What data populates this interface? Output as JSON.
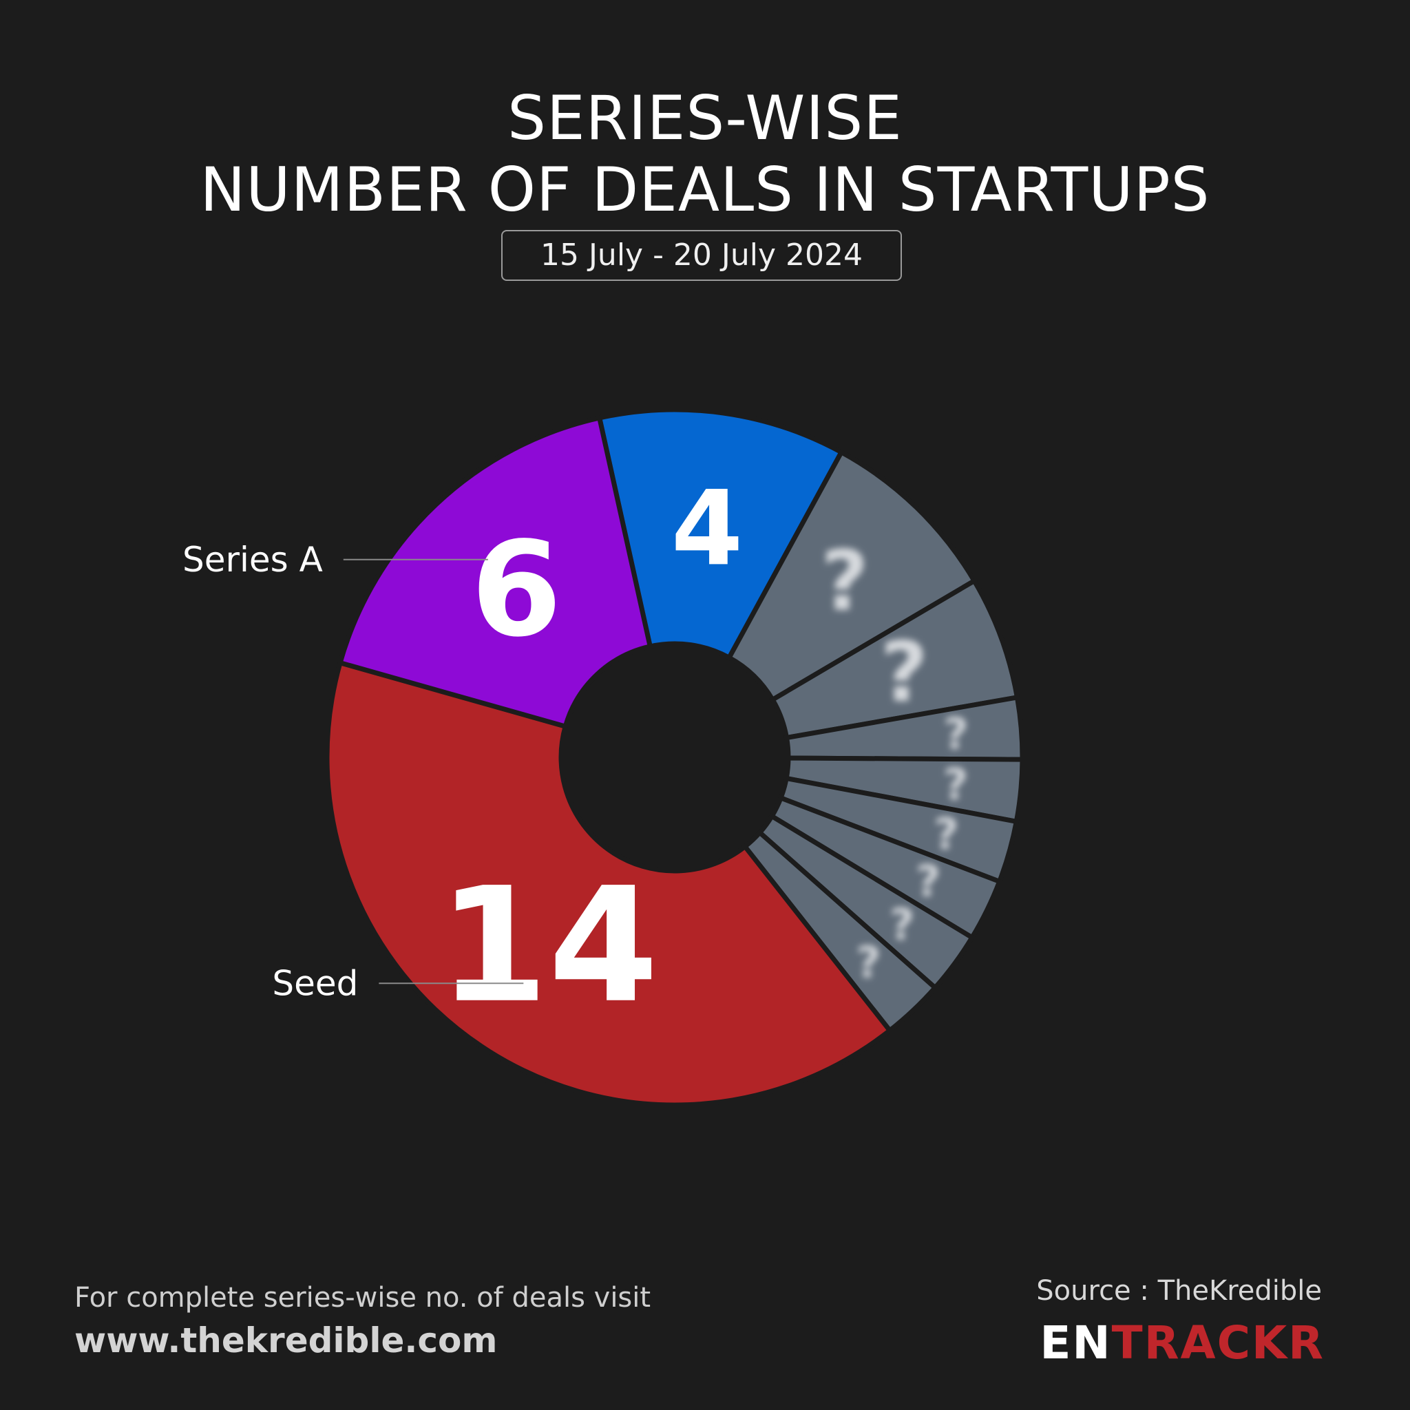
{
  "header": {
    "title_line1": "SERIES-WISE",
    "title_line2": "NUMBER OF DEALS IN STARTUPS",
    "date_range": "15 July - 20 July 2024"
  },
  "chart_data": {
    "type": "pie",
    "donut": true,
    "hidden_value_label": "?",
    "slices": [
      {
        "label": "",
        "value": 4,
        "display": "4",
        "color": "#0567d1",
        "hidden": false
      },
      {
        "label": "",
        "value": 3,
        "display": "?",
        "color": "#5f6b78",
        "hidden": true
      },
      {
        "label": "",
        "value": 2,
        "display": "?",
        "color": "#5f6b78",
        "hidden": true
      },
      {
        "label": "",
        "value": 1,
        "display": "?",
        "color": "#5f6b78",
        "hidden": true
      },
      {
        "label": "",
        "value": 1,
        "display": "?",
        "color": "#5f6b78",
        "hidden": true
      },
      {
        "label": "",
        "value": 1,
        "display": "?",
        "color": "#5f6b78",
        "hidden": true
      },
      {
        "label": "",
        "value": 1,
        "display": "?",
        "color": "#5f6b78",
        "hidden": true
      },
      {
        "label": "",
        "value": 1,
        "display": "?",
        "color": "#5f6b78",
        "hidden": true
      },
      {
        "label": "",
        "value": 1,
        "display": "?",
        "color": "#5f6b78",
        "hidden": true
      },
      {
        "label": "Seed",
        "value": 14,
        "display": "14",
        "color": "#b22427",
        "hidden": false
      },
      {
        "label": "Series A",
        "value": 6,
        "display": "6",
        "color": "#8e0ad6",
        "hidden": false
      }
    ]
  },
  "footer": {
    "note": "For complete series-wise no. of deals visit",
    "url": "www.thekredible.com",
    "source": "Source : TheKredible",
    "logo_part1": "EN",
    "logo_part2": "TRACKR"
  }
}
